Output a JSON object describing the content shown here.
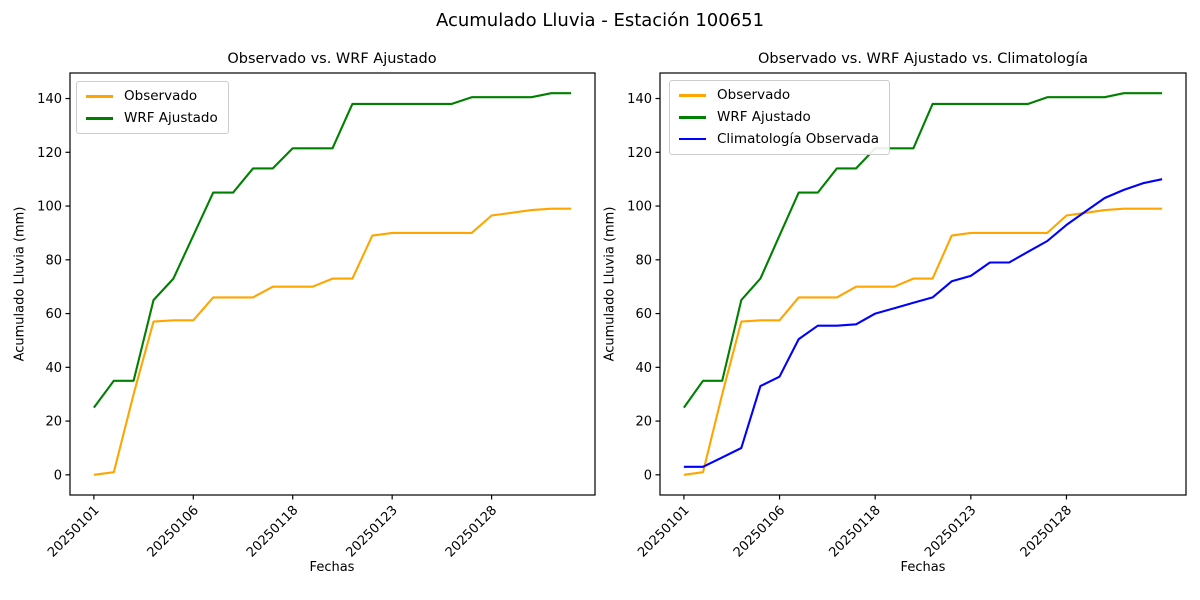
{
  "figure": {
    "title": "Acumulado Lluvia - Estación 100651",
    "background_color": "#ffffff",
    "text_color": "#000000",
    "axis_color": "#000000"
  },
  "chart_data": [
    {
      "type": "line",
      "title": "Observado vs. WRF Ajustado",
      "xlabel": "Fechas",
      "ylabel": "Acumulado Lluvia (mm)",
      "ylim": [
        -7.5,
        149.5
      ],
      "grid": false,
      "legend_position": "upper-left",
      "y_ticks": [
        0,
        20,
        40,
        60,
        80,
        100,
        120,
        140
      ],
      "x_tick_positions": [
        0,
        5,
        10,
        15,
        20
      ],
      "x_tick_labels": [
        "20250101",
        "20250106",
        "20250118",
        "20250123",
        "20250128"
      ],
      "x": [
        0,
        1,
        2,
        3,
        4,
        5,
        6,
        7,
        8,
        9,
        10,
        11,
        12,
        13,
        14,
        15,
        16,
        17,
        18,
        19,
        20,
        21,
        22,
        23,
        24
      ],
      "series": [
        {
          "name": "Observado",
          "color": "#FFA500",
          "values": [
            0,
            1,
            30,
            57,
            57.5,
            57.5,
            66,
            66,
            66,
            70,
            70,
            70,
            73,
            73,
            89,
            90,
            90,
            90,
            90,
            90,
            96.5,
            97.5,
            98.5,
            99,
            99
          ]
        },
        {
          "name": "WRF Ajustado",
          "color": "#008000",
          "values": [
            25,
            35,
            35,
            65,
            73,
            89,
            105,
            105,
            114,
            114,
            121.5,
            121.5,
            121.5,
            138,
            138,
            138,
            138,
            138,
            138,
            140.5,
            140.5,
            140.5,
            140.5,
            142,
            142
          ]
        }
      ]
    },
    {
      "type": "line",
      "title": "Observado vs. WRF Ajustado vs. Climatología",
      "xlabel": "Fechas",
      "ylabel": "Acumulado Lluvia (mm)",
      "ylim": [
        -7.5,
        149.5
      ],
      "grid": false,
      "legend_position": "upper-left",
      "y_ticks": [
        0,
        20,
        40,
        60,
        80,
        100,
        120,
        140
      ],
      "x_tick_positions": [
        0,
        5,
        10,
        15,
        20
      ],
      "x_tick_labels": [
        "20250101",
        "20250106",
        "20250118",
        "20250123",
        "20250128"
      ],
      "x": [
        0,
        1,
        2,
        3,
        4,
        5,
        6,
        7,
        8,
        9,
        10,
        11,
        12,
        13,
        14,
        15,
        16,
        17,
        18,
        19,
        20,
        21,
        22,
        23,
        24,
        25
      ],
      "series": [
        {
          "name": "Observado",
          "color": "#FFA500",
          "values": [
            0,
            1,
            30,
            57,
            57.5,
            57.5,
            66,
            66,
            66,
            70,
            70,
            70,
            73,
            73,
            89,
            90,
            90,
            90,
            90,
            90,
            96.5,
            97.5,
            98.5,
            99,
            99,
            99
          ]
        },
        {
          "name": "WRF Ajustado",
          "color": "#008000",
          "values": [
            25,
            35,
            35,
            65,
            73,
            89,
            105,
            105,
            114,
            114,
            121.5,
            121.5,
            121.5,
            138,
            138,
            138,
            138,
            138,
            138,
            140.5,
            140.5,
            140.5,
            140.5,
            142,
            142,
            142
          ]
        },
        {
          "name": "Climatología Observada",
          "color": "#0000FF",
          "values": [
            3,
            3,
            6.5,
            10,
            33,
            36.5,
            50.5,
            55.5,
            55.5,
            56,
            60,
            62,
            64,
            66,
            72,
            74,
            79,
            79,
            83,
            87,
            93,
            98,
            103,
            106,
            108.5,
            110
          ]
        }
      ]
    }
  ]
}
